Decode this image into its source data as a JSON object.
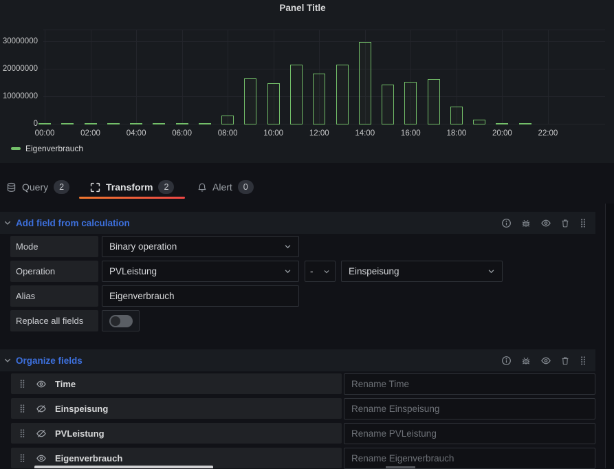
{
  "panel": {
    "title": "Panel Title"
  },
  "chart_data": {
    "type": "bar",
    "title": "Panel Title",
    "series_name": "Eigenverbrauch",
    "bar_color": "#73bf69",
    "categories": [
      "00:00",
      "01:00",
      "02:00",
      "03:00",
      "04:00",
      "05:00",
      "06:00",
      "07:00",
      "08:00",
      "09:00",
      "10:00",
      "11:00",
      "12:00",
      "13:00",
      "14:00",
      "15:00",
      "16:00",
      "17:00",
      "18:00",
      "19:00",
      "20:00",
      "21:00"
    ],
    "values": [
      150000,
      150000,
      150000,
      150000,
      150000,
      150000,
      150000,
      600000,
      3300000,
      16800000,
      15100000,
      21800000,
      18600000,
      21800000,
      29900000,
      14500000,
      15600000,
      16500000,
      6400000,
      1800000,
      400000,
      250000
    ],
    "x_tick_labels": [
      "00:00",
      "02:00",
      "04:00",
      "06:00",
      "08:00",
      "10:00",
      "12:00",
      "14:00",
      "16:00",
      "18:00",
      "20:00",
      "22:00"
    ],
    "y_ticks": [
      0,
      10000000,
      20000000,
      30000000
    ],
    "y_tick_labels": [
      "0",
      "10000000",
      "20000000",
      "30000000"
    ],
    "ylim": [
      0,
      34500000
    ],
    "xlabel": "",
    "ylabel": "",
    "grid": true,
    "legend": [
      {
        "label": "Eigenverbrauch",
        "color": "#73bf69"
      }
    ],
    "legend_position": "bottom-left"
  },
  "tabs": {
    "query": {
      "label": "Query",
      "badge": "2"
    },
    "transform": {
      "label": "Transform",
      "badge": "2"
    },
    "alert": {
      "label": "Alert",
      "badge": "0"
    }
  },
  "add_field_section": {
    "title": "Add field from calculation",
    "mode_label": "Mode",
    "mode_value": "Binary operation",
    "operation_label": "Operation",
    "operation_left": "PVLeistung",
    "operation_operator": "-",
    "operation_right": "Einspeisung",
    "alias_label": "Alias",
    "alias_value": "Eigenverbrauch",
    "replace_label": "Replace all fields",
    "replace_enabled": false
  },
  "organize_section": {
    "title": "Organize fields",
    "fields": [
      {
        "name": "Time",
        "visible": true,
        "rename_placeholder": "Rename Time"
      },
      {
        "name": "Einspeisung",
        "visible": false,
        "rename_placeholder": "Rename Einspeisung"
      },
      {
        "name": "PVLeistung",
        "visible": false,
        "rename_placeholder": "Rename PVLeistung"
      },
      {
        "name": "Eigenverbrauch",
        "visible": true,
        "rename_placeholder": "Rename Eigenverbrauch"
      }
    ]
  },
  "colors": {
    "accent_green": "#73bf69",
    "link_blue": "#3d70dd",
    "tab_underline_from": "#f0772f",
    "tab_underline_to": "#ef4745",
    "panel_bg": "#181b1f",
    "page_bg": "#111217"
  },
  "icons": {
    "query": "database-icon",
    "transform": "transform-icon",
    "alert": "bell-icon",
    "section_actions": [
      "info-icon",
      "bug-icon",
      "eye-icon",
      "trash-icon",
      "grip-icon"
    ]
  }
}
